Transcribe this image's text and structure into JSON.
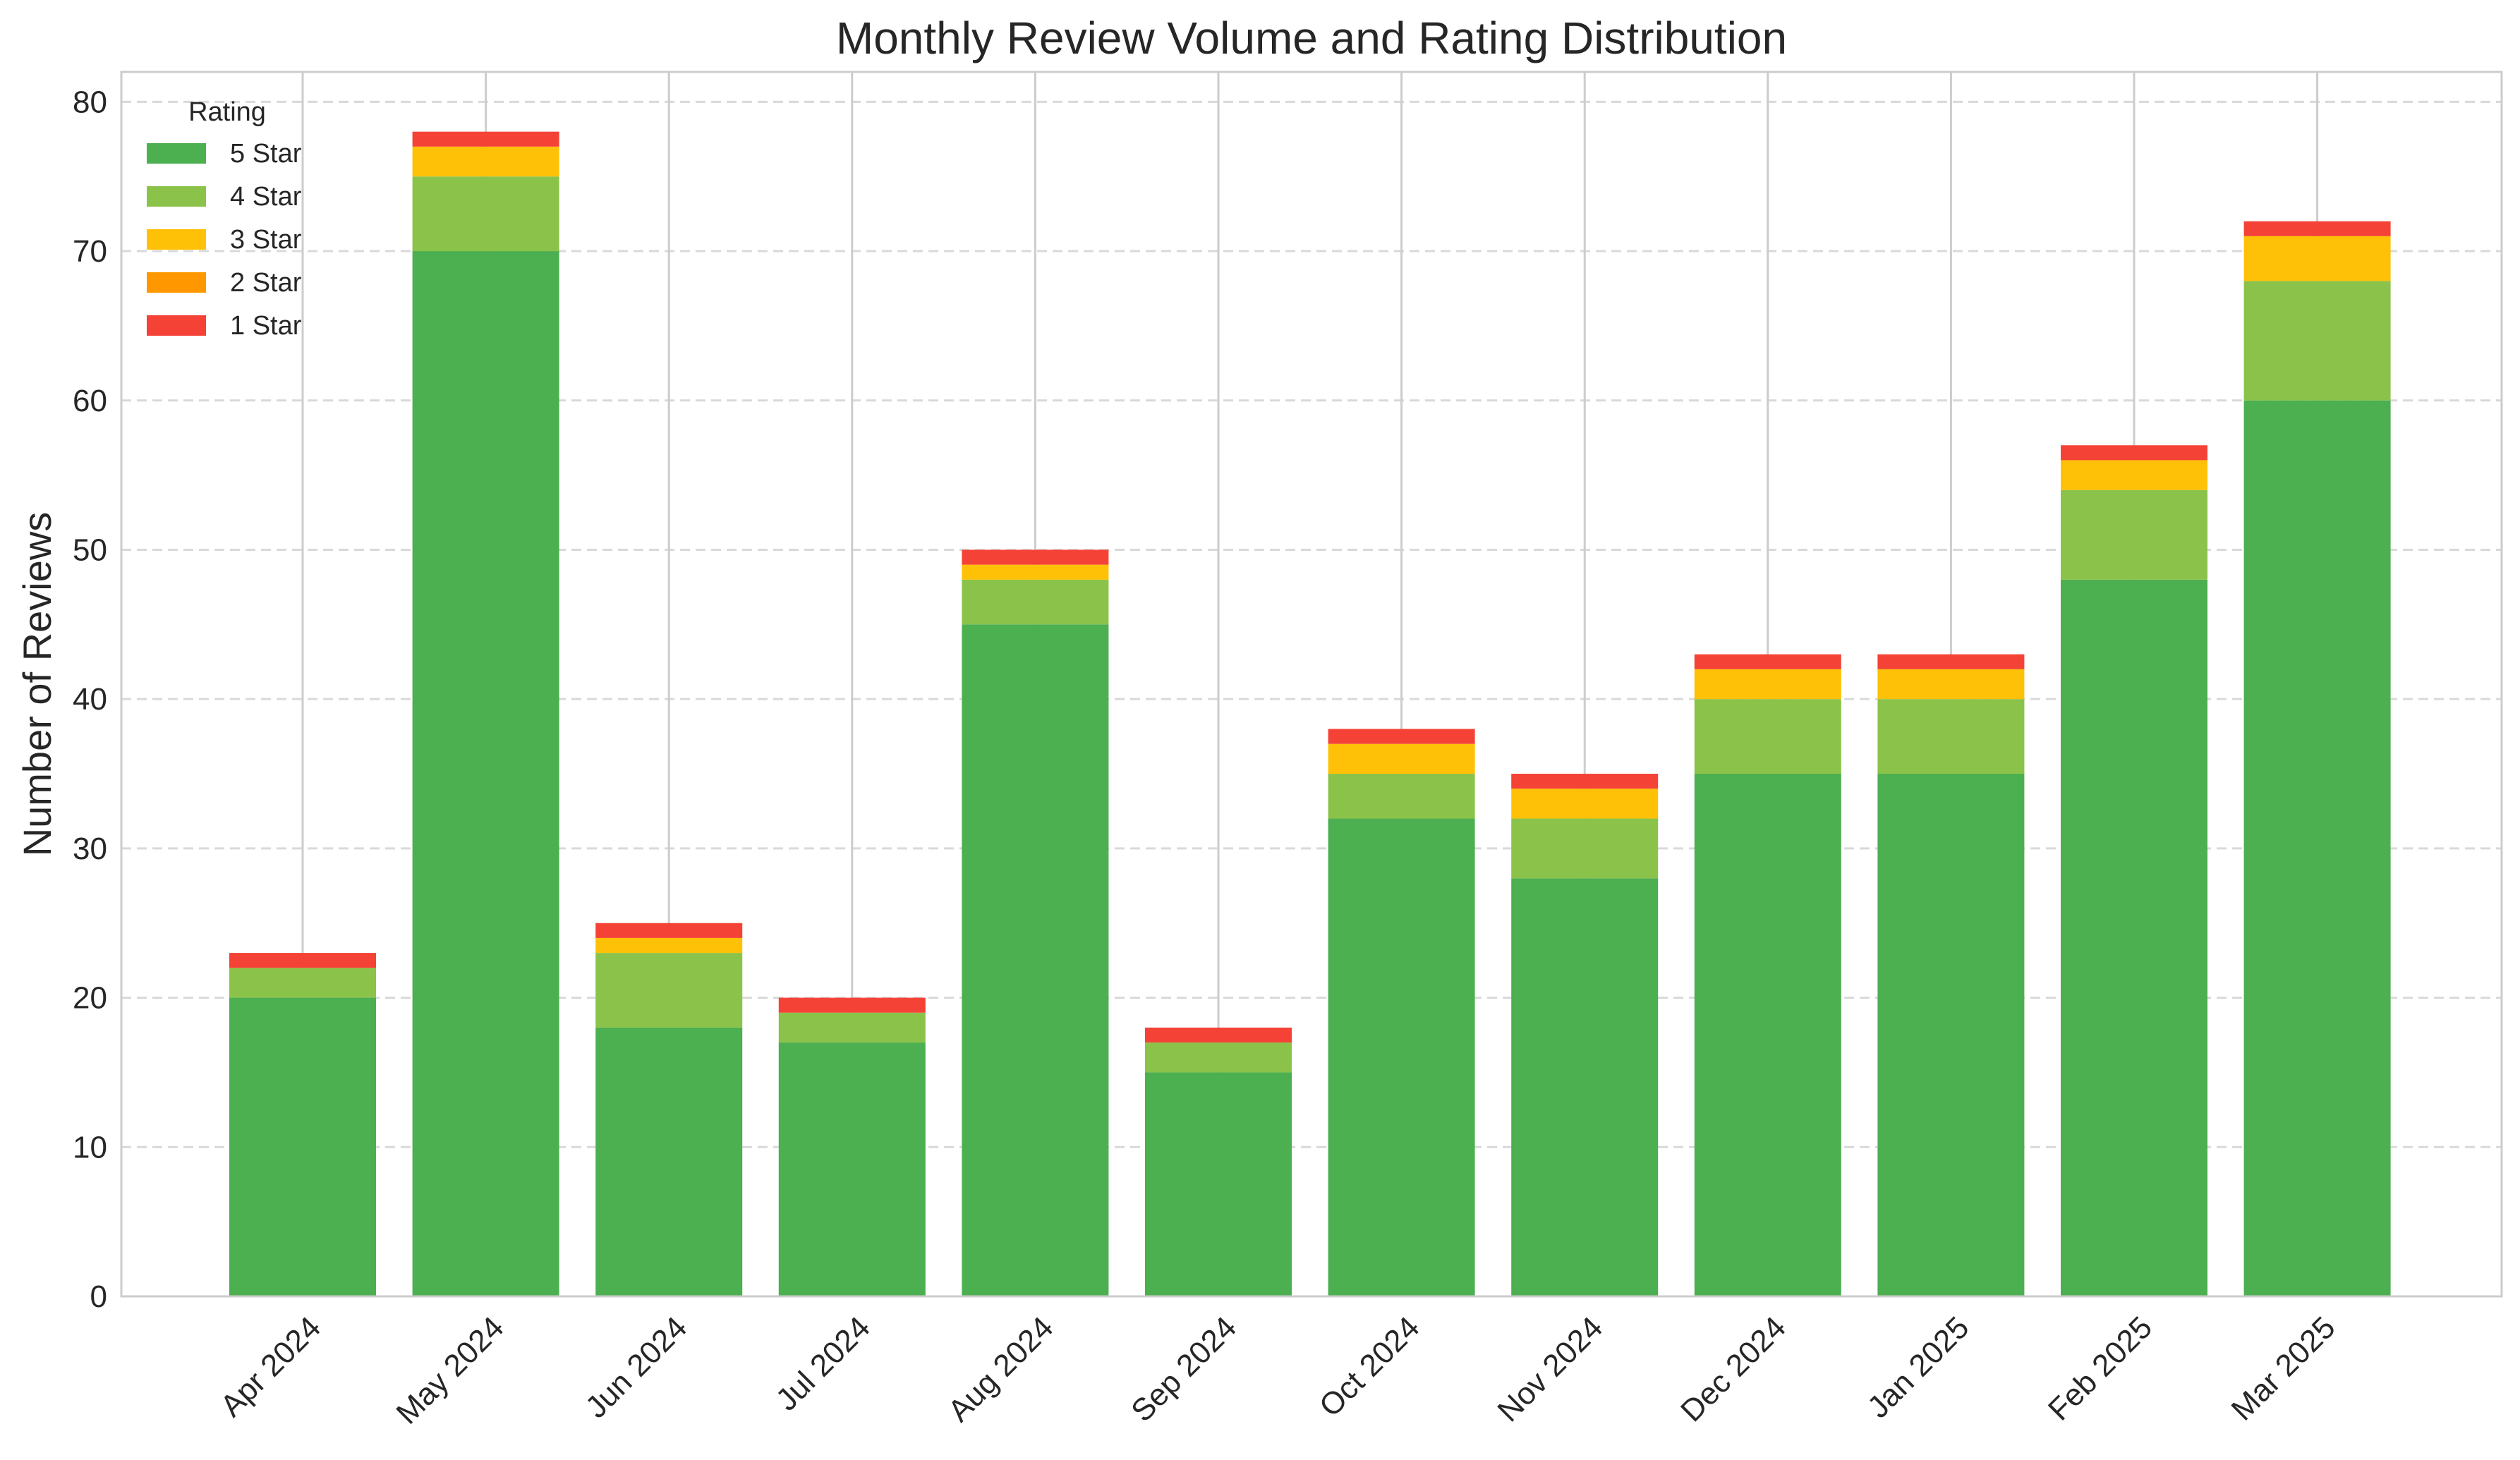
{
  "chart_data": {
    "type": "bar",
    "stacked": true,
    "title": "Monthly Review Volume and Rating Distribution",
    "xlabel": "",
    "ylabel": "Number of Reviews",
    "ylim": [
      0,
      82
    ],
    "yticks": [
      0,
      10,
      20,
      30,
      40,
      50,
      60,
      70,
      80
    ],
    "grid": true,
    "legend": {
      "title": "Rating",
      "placement": "top-left"
    },
    "categories": [
      "Apr 2024",
      "May 2024",
      "Jun 2024",
      "Jul 2024",
      "Aug 2024",
      "Sep 2024",
      "Oct 2024",
      "Nov 2024",
      "Dec 2024",
      "Jan 2025",
      "Feb 2025",
      "Mar 2025"
    ],
    "series": [
      {
        "name": "5 Star",
        "color": "#4caf50",
        "values": [
          20,
          70,
          18,
          17,
          45,
          15,
          32,
          28,
          35,
          35,
          48,
          60
        ]
      },
      {
        "name": "4 Star",
        "color": "#8bc34a",
        "values": [
          2,
          5,
          5,
          2,
          3,
          2,
          3,
          4,
          5,
          5,
          6,
          8
        ]
      },
      {
        "name": "3 Star",
        "color": "#ffc107",
        "values": [
          0,
          2,
          1,
          0,
          1,
          0,
          2,
          2,
          2,
          2,
          2,
          3
        ]
      },
      {
        "name": "2 Star",
        "color": "#ff9800",
        "values": [
          0,
          0,
          0,
          0,
          0,
          0,
          0,
          0,
          0,
          0,
          0,
          0
        ]
      },
      {
        "name": "1 Star",
        "color": "#f44336",
        "values": [
          1,
          1,
          1,
          1,
          1,
          1,
          1,
          1,
          1,
          1,
          1,
          1
        ]
      }
    ]
  }
}
